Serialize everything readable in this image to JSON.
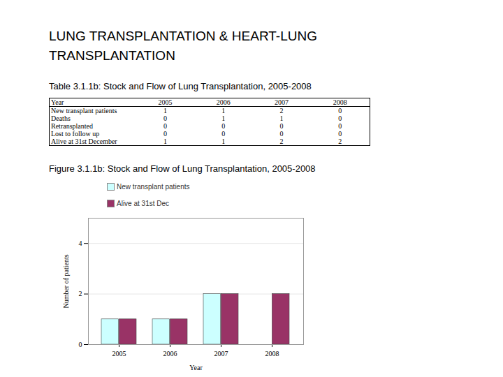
{
  "title": "LUNG TRANSPLANTATION & HEART-LUNG TRANSPLANTATION",
  "table": {
    "caption": "Table 3.1.1b: Stock and Flow of Lung Transplantation, 2005-2008",
    "header": [
      "Year",
      "2005",
      "2006",
      "2007",
      "2008"
    ],
    "rows": [
      [
        "New transplant patients",
        1,
        1,
        2,
        0
      ],
      [
        "Deaths",
        0,
        1,
        1,
        0
      ],
      [
        "Retransplanted",
        0,
        0,
        0,
        0
      ],
      [
        "Lost to follow up",
        0,
        0,
        0,
        0
      ],
      [
        "Alive at 31st December",
        1,
        1,
        2,
        2
      ]
    ]
  },
  "chart_data": {
    "type": "bar",
    "title": "Figure 3.1.1b: Stock and Flow of Lung Transplantation, 2005-2008",
    "categories": [
      "2005",
      "2006",
      "2007",
      "2008"
    ],
    "series": [
      {
        "name": "New transplant patients",
        "color": "#ccffff",
        "values": [
          1,
          1,
          2,
          0
        ]
      },
      {
        "name": "Alive at 31st Dec",
        "color": "#993366",
        "values": [
          1,
          1,
          2,
          2
        ]
      }
    ],
    "x_label": "Year",
    "y_label": "Number of patients",
    "ylim": [
      0,
      5
    ],
    "yticks": [
      0,
      2,
      4
    ],
    "grid": true,
    "legend": "top-left"
  }
}
